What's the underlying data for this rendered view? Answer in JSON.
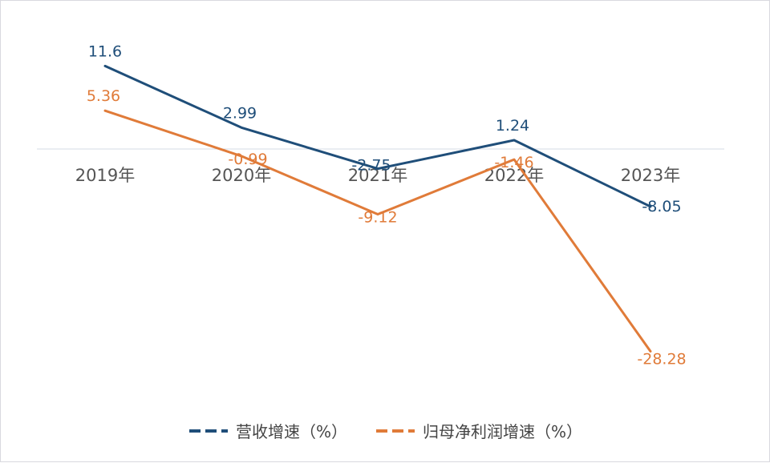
{
  "chart_data": {
    "type": "line",
    "categories": [
      "2019年",
      "2020年",
      "2021年",
      "2022年",
      "2023年"
    ],
    "series": [
      {
        "name": "营收增速（%）",
        "color": "#1f4e79",
        "values": [
          11.6,
          2.99,
          -2.75,
          1.24,
          -8.05
        ],
        "labels": [
          "11.6",
          "2.99",
          "-2.75",
          "1.24",
          "-8.05"
        ]
      },
      {
        "name": "归母净利润增速（%）",
        "color": "#e07b39",
        "values": [
          5.36,
          -0.99,
          -9.12,
          -1.46,
          -28.28
        ],
        "labels": [
          "5.36",
          "-0.99",
          "-9.12",
          "-1.46",
          "-28.28"
        ]
      }
    ],
    "ylim": [
      -30,
      14
    ],
    "grid": false,
    "legend_position": "bottom"
  }
}
